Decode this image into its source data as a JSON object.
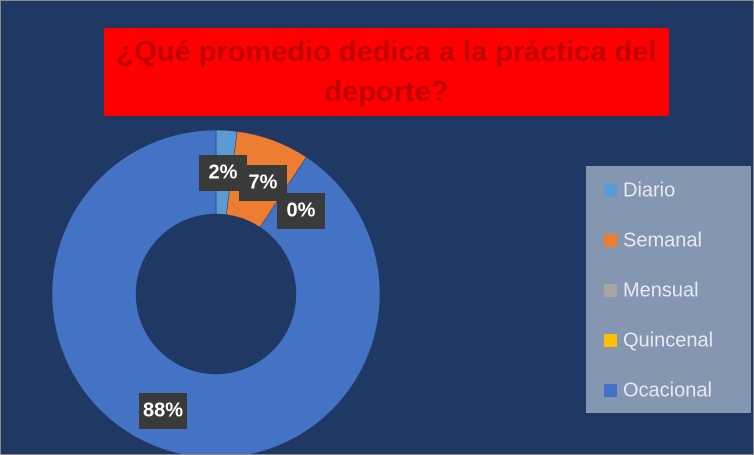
{
  "chart_data": {
    "type": "donut",
    "title": "¿Qué promedio dedica a la práctica del deporte?",
    "categories": [
      "Diario",
      "Semanal",
      "Mensual",
      "Quincenal",
      "Ocacional"
    ],
    "values": [
      2,
      7,
      0,
      0,
      88
    ],
    "value_labels": [
      "2%",
      "7%",
      "0%",
      null,
      "88%"
    ],
    "colors": [
      "#5b9bd5",
      "#ed7d31",
      "#a5a5a5",
      "#ffc000",
      "#4472c4"
    ],
    "legend": "right"
  }
}
